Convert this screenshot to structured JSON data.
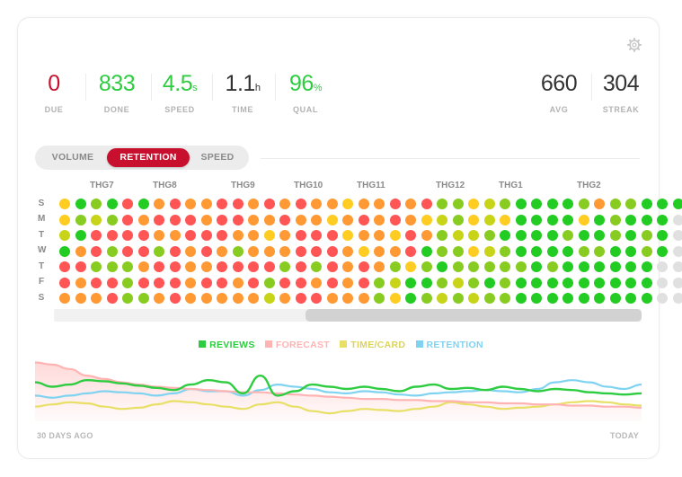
{
  "stats": [
    {
      "value": "0",
      "unit": "",
      "label": "DUE",
      "color": "#c8102e"
    },
    {
      "value": "833",
      "unit": "",
      "label": "DONE",
      "color": "#2ecc40"
    },
    {
      "value": "4.5",
      "unit": "s",
      "label": "SPEED",
      "color": "#2ecc40"
    },
    {
      "value": "1.1",
      "unit": "h",
      "label": "TIME",
      "color": "#333333"
    },
    {
      "value": "96",
      "unit": "%",
      "label": "QUAL",
      "color": "#2ecc40"
    },
    {
      "value": "660",
      "unit": "",
      "label": "AVG",
      "color": "#333333"
    },
    {
      "value": "304",
      "unit": "",
      "label": "STREAK",
      "color": "#333333"
    }
  ],
  "tabs": [
    "VOLUME",
    "RETENTION",
    "SPEED"
  ],
  "active_tab": "RETENTION",
  "months": [
    "THG7",
    "THG8",
    "THG9",
    "THG10",
    "THG11",
    "THG12",
    "THG1",
    "THG2"
  ],
  "days": [
    "S",
    "M",
    "T",
    "W",
    "T",
    "F",
    "S"
  ],
  "heatmap": {
    "palette": {
      "G": "#22cc22",
      "L": "#88cc22",
      "Y": "#c8d418",
      "A": "#ffcc22",
      "O": "#ff9933",
      "R": "#ff6b3d",
      "X": "#ff5555",
      "E": "#e0e0e0"
    },
    "rows": [
      "AGLGXGOXOOXXOXOXOOAOOXOXLLAYLGGGGLOLLGGGEE",
      "ALYLXOXXXOXXOOXOOAOXOXOAYLAYAGGGGAGLGGGEE",
      "YGXXXXOOXXXOOAOXXXAOOAXOLYYLGGGGLGGLGLGEEE",
      "GOXLXXLXOXOLOOOXXXOAOOXGLLAYLGGGGLLGGLGEE",
      "XXLLLOXXOOXXXXLXLXOXOLALGLLLLLGLGGGGGGEE",
      "XOXXLXXXOXXOXLXXOXOXLYGGLYLGLGGGGGGGGGEE",
      "OOOXLLOXOOOOOYOXXOOOLAGLYLYLLGGGGGGGGGEE"
    ]
  },
  "legend": [
    {
      "label": "REVIEWS",
      "color": "#2ecc40"
    },
    {
      "label": "FORECAST",
      "color": "#ffb3b3"
    },
    {
      "label": "TIME/CARD",
      "color": "#e8e066"
    },
    {
      "label": "RETENTION",
      "color": "#7fd3f0"
    }
  ],
  "footer": {
    "left": "30 DAYS AGO",
    "right": "TODAY"
  },
  "chart_data": {
    "type": "line",
    "xlabel": "",
    "ylabel": "",
    "series": [
      {
        "name": "REVIEWS",
        "values": [
          42,
          38,
          40,
          44,
          43,
          41,
          39,
          37,
          35,
          40,
          44,
          42,
          32,
          48,
          30,
          34,
          40,
          38,
          36,
          38,
          36,
          34,
          38,
          40,
          36,
          37,
          35,
          38,
          36,
          34,
          36,
          35,
          33,
          32,
          31,
          32
        ]
      },
      {
        "name": "FORECAST",
        "values": [
          60,
          58,
          54,
          48,
          45,
          42,
          40,
          38,
          37,
          36,
          35,
          34,
          33,
          33,
          32,
          31,
          30,
          29,
          28,
          27,
          27,
          26,
          26,
          25,
          25,
          24,
          24,
          23,
          23,
          22,
          22,
          21,
          21,
          20,
          20,
          19
        ]
      },
      {
        "name": "TIME/CARD",
        "values": [
          20,
          22,
          24,
          23,
          20,
          18,
          19,
          22,
          25,
          24,
          22,
          20,
          18,
          22,
          24,
          20,
          16,
          14,
          16,
          18,
          17,
          16,
          18,
          20,
          24,
          22,
          20,
          18,
          19,
          20,
          22,
          24,
          25,
          24,
          22,
          21
        ]
      },
      {
        "name": "RETENTION",
        "values": [
          30,
          28,
          30,
          32,
          34,
          33,
          32,
          30,
          32,
          36,
          34,
          34,
          30,
          35,
          40,
          38,
          36,
          33,
          32,
          34,
          33,
          31,
          30,
          32,
          33,
          34,
          35,
          34,
          33,
          36,
          42,
          44,
          42,
          38,
          36,
          40
        ]
      }
    ]
  }
}
